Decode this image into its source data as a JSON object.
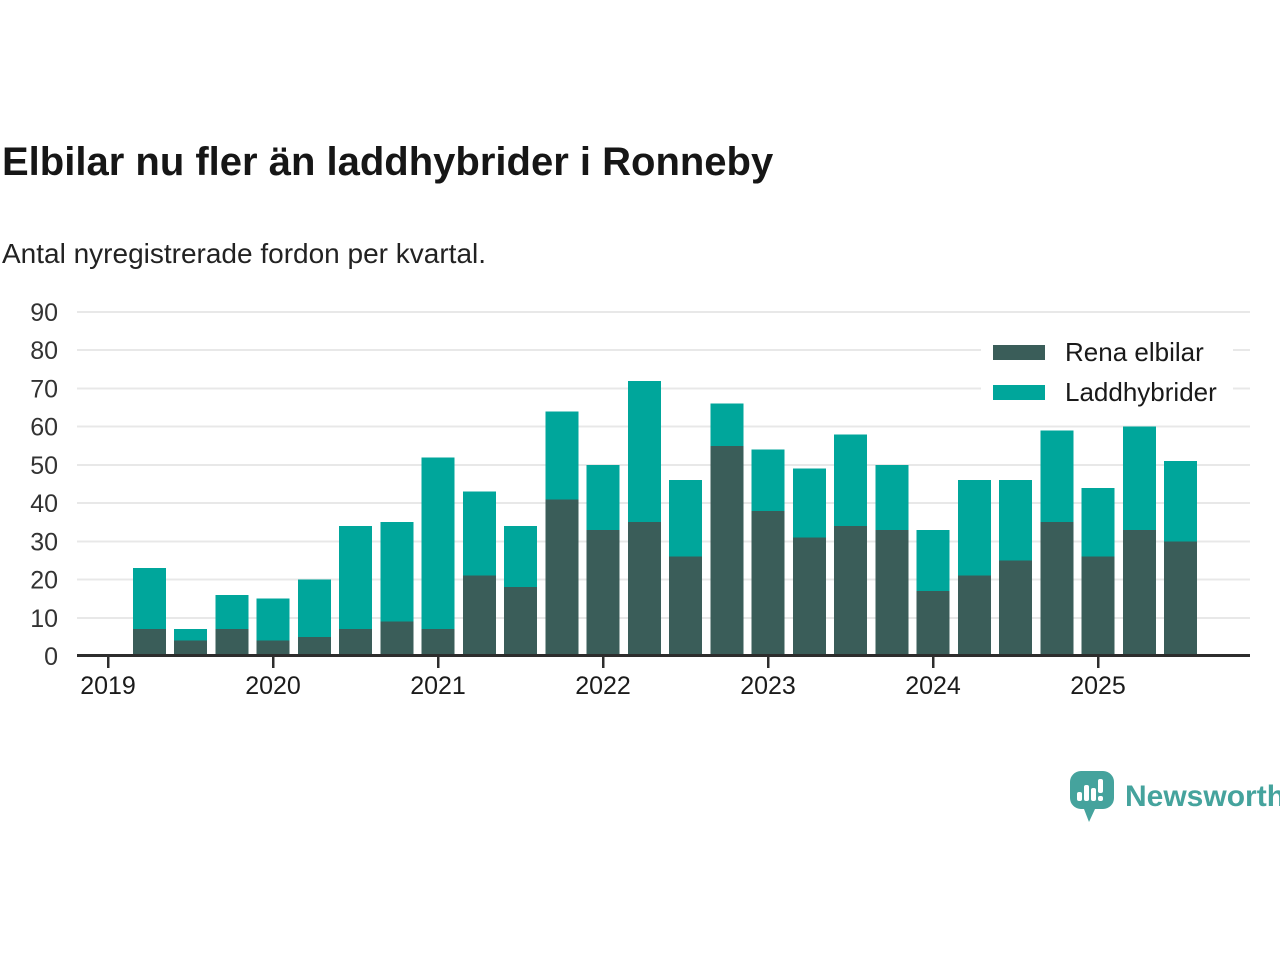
{
  "header": {
    "title": "Elbilar nu fler än laddhybrider i Ronneby",
    "subtitle": "Antal nyregistrerade fordon per kvartal."
  },
  "chart_data": {
    "type": "bar",
    "stacked": true,
    "title": "Elbilar nu fler än laddhybrider i Ronneby",
    "subtitle": "Antal nyregistrerade fordon per kvartal.",
    "categories": [
      "2019 Q2",
      "2019 Q3",
      "2019 Q4",
      "2020 Q1",
      "2020 Q2",
      "2020 Q3",
      "2020 Q4",
      "2021 Q1",
      "2021 Q2",
      "2021 Q3",
      "2021 Q4",
      "2022 Q1",
      "2022 Q2",
      "2022 Q3",
      "2022 Q4",
      "2023 Q1",
      "2023 Q2",
      "2023 Q3",
      "2023 Q4",
      "2024 Q1",
      "2024 Q2",
      "2024 Q3",
      "2024 Q4",
      "2025 Q1",
      "2025 Q2",
      "2025 Q3"
    ],
    "series": [
      {
        "name": "Rena elbilar",
        "color": "#3A5D59",
        "values": [
          7,
          4,
          7,
          4,
          5,
          7,
          9,
          7,
          21,
          18,
          41,
          33,
          35,
          26,
          55,
          38,
          31,
          34,
          33,
          17,
          21,
          25,
          35,
          26,
          33,
          30
        ]
      },
      {
        "name": "Laddhybrider",
        "color": "#00A69B",
        "values": [
          16,
          3,
          9,
          11,
          15,
          27,
          26,
          45,
          22,
          16,
          23,
          17,
          37,
          20,
          11,
          16,
          18,
          24,
          17,
          16,
          25,
          21,
          24,
          18,
          27,
          21
        ]
      }
    ],
    "totals": [
      23,
      7,
      16,
      15,
      20,
      34,
      35,
      52,
      43,
      34,
      64,
      50,
      72,
      46,
      66,
      54,
      49,
      58,
      50,
      33,
      46,
      46,
      59,
      44,
      60,
      51
    ],
    "y_ticks": [
      0,
      10,
      20,
      30,
      40,
      50,
      60,
      70,
      80,
      90
    ],
    "x_ticks": [
      "2019",
      "2020",
      "2021",
      "2022",
      "2023",
      "2024",
      "2025"
    ],
    "ylim": [
      0,
      90
    ],
    "grid": "horizontal",
    "legend_position": "top-right"
  },
  "colors": {
    "axis_line": "#2d2d2d",
    "gridline": "#e8e8e8",
    "tick_text": "#333333",
    "year_text": "#1b1b1b",
    "title_text": "#161616"
  },
  "branding": {
    "logo_text": "Newsworthy",
    "logo_color": "#45A39D",
    "logo_icon": "bar-chart-speech-bubble-icon"
  }
}
